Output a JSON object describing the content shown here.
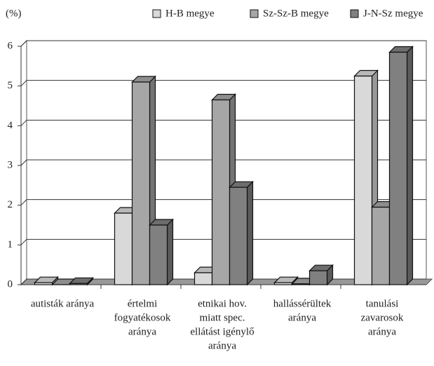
{
  "chart_data": {
    "type": "bar3d",
    "y_label": "(%)",
    "categories": [
      [
        "autisták aránya"
      ],
      [
        "értelmi",
        "fogyatékosok",
        "aránya"
      ],
      [
        "etnikai hov.",
        "miatt spec.",
        "ellátást igénylő",
        "aránya"
      ],
      [
        "hallássérültek",
        "aránya"
      ],
      [
        "tanulási",
        "zavarosok",
        "aránya"
      ]
    ],
    "series": [
      {
        "name": "H-B megye",
        "color": "#d9d9d9",
        "values": [
          0.05,
          1.8,
          0.3,
          0.05,
          5.25
        ]
      },
      {
        "name": "Sz-Sz-B megye",
        "color": "#a6a6a6",
        "values": [
          0,
          5.1,
          4.65,
          0.02,
          1.95
        ]
      },
      {
        "name": "J-N-Sz megye",
        "color": "#808080",
        "values": [
          0.03,
          1.5,
          2.45,
          0.35,
          5.85
        ]
      }
    ],
    "ylim": [
      0,
      6
    ],
    "yticks": [
      0,
      1,
      2,
      3,
      4,
      5,
      6
    ],
    "grid": true,
    "legend": "top"
  }
}
